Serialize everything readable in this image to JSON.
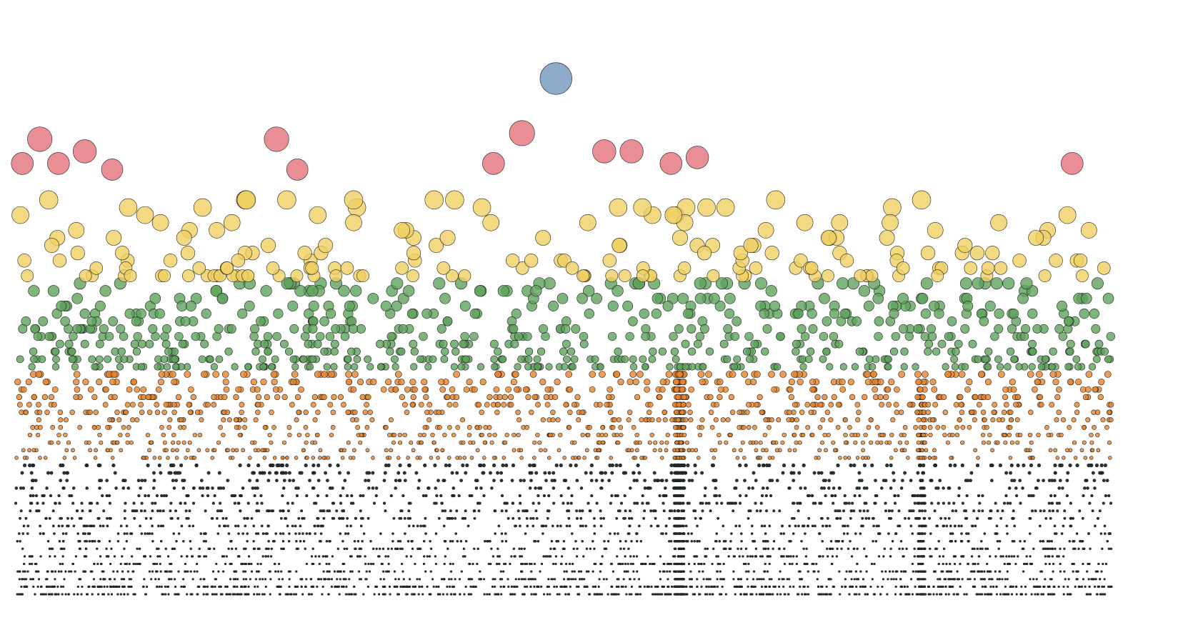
{
  "chart_data": {
    "type": "scatter",
    "title": "",
    "xlabel": "",
    "ylabel": "",
    "axes_visible": false,
    "grid": false,
    "legend": "none",
    "marker_size_encodes_y": true,
    "color_bands": [
      {
        "id": "blue",
        "color": "#7396be",
        "y_from": 17,
        "y_to": 17
      },
      {
        "id": "red",
        "color": "#e3727a",
        "y_from": 14,
        "y_to": 15.5
      },
      {
        "id": "yellow",
        "color": "#f0cf61",
        "y_from": 10.5,
        "y_to": 13
      },
      {
        "id": "green",
        "color": "#5ea35b",
        "y_from": 7.5,
        "y_to": 10.5
      },
      {
        "id": "orange",
        "color": "#e7842a",
        "y_from": 4.5,
        "y_to": 7.5
      },
      {
        "id": "black",
        "color": "#1d2a2a",
        "y_from": 0,
        "y_to": 4.5
      }
    ],
    "highlighted_points": [
      {
        "band": "blue",
        "x": 0.493,
        "y": 17.0
      },
      {
        "band": "red",
        "x": 0.022,
        "y": 15.0
      },
      {
        "band": "red",
        "x": 0.063,
        "y": 14.6
      },
      {
        "band": "red",
        "x": 0.238,
        "y": 15.0
      },
      {
        "band": "red",
        "x": 0.462,
        "y": 15.2
      },
      {
        "band": "red",
        "x": 0.537,
        "y": 14.6
      },
      {
        "band": "red",
        "x": 0.562,
        "y": 14.6
      },
      {
        "band": "red",
        "x": 0.622,
        "y": 14.4
      },
      {
        "band": "red",
        "x": 0.006,
        "y": 14.2
      },
      {
        "band": "red",
        "x": 0.039,
        "y": 14.2
      },
      {
        "band": "red",
        "x": 0.088,
        "y": 14.0
      },
      {
        "band": "red",
        "x": 0.257,
        "y": 14.0
      },
      {
        "band": "red",
        "x": 0.436,
        "y": 14.2
      },
      {
        "band": "red",
        "x": 0.598,
        "y": 14.2
      },
      {
        "band": "red",
        "x": 0.964,
        "y": 14.2
      }
    ],
    "dense_region_x": [
      0.601,
      0.61
    ],
    "secondary_dense_region_x": [
      0.823,
      0.83
    ]
  }
}
